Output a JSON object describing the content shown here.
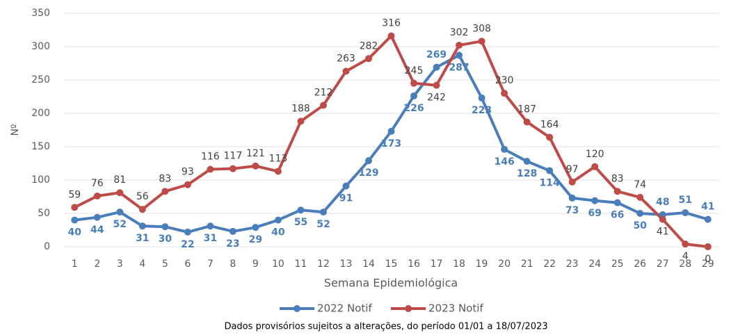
{
  "chart_data": {
    "type": "line",
    "y_label": "Nº",
    "x_label": "Semana Epidemiológica",
    "note": "Dados provisórios sujeitos a alterações, do período 01/01 a 18/07/2023",
    "categories": [
      "1",
      "2",
      "3",
      "4",
      "5",
      "6",
      "7",
      "8",
      "9",
      "10",
      "11",
      "12",
      "13",
      "14",
      "15",
      "16",
      "17",
      "18",
      "19",
      "20",
      "21",
      "22",
      "23",
      "24",
      "25",
      "26",
      "27",
      "28",
      "29"
    ],
    "series": [
      {
        "name": "2022 Notif",
        "color": "#4a7ebb",
        "values": [
          40,
          44,
          52,
          31,
          30,
          22,
          31,
          23,
          29,
          40,
          55,
          52,
          91,
          129,
          173,
          226,
          269,
          287,
          223,
          146,
          128,
          114,
          73,
          69,
          66,
          50,
          48,
          51,
          41
        ]
      },
      {
        "name": "2023 Notif",
        "color": "#be4b48",
        "values": [
          59,
          76,
          81,
          56,
          83,
          93,
          116,
          117,
          121,
          113,
          188,
          212,
          263,
          282,
          316,
          245,
          242,
          302,
          308,
          230,
          187,
          164,
          97,
          120,
          83,
          74,
          41,
          4,
          0
        ]
      }
    ],
    "ylim": [
      0,
      350
    ],
    "yticks": [
      0,
      50,
      100,
      150,
      200,
      250,
      300,
      350
    ],
    "grid": true,
    "legend": "bottom"
  }
}
